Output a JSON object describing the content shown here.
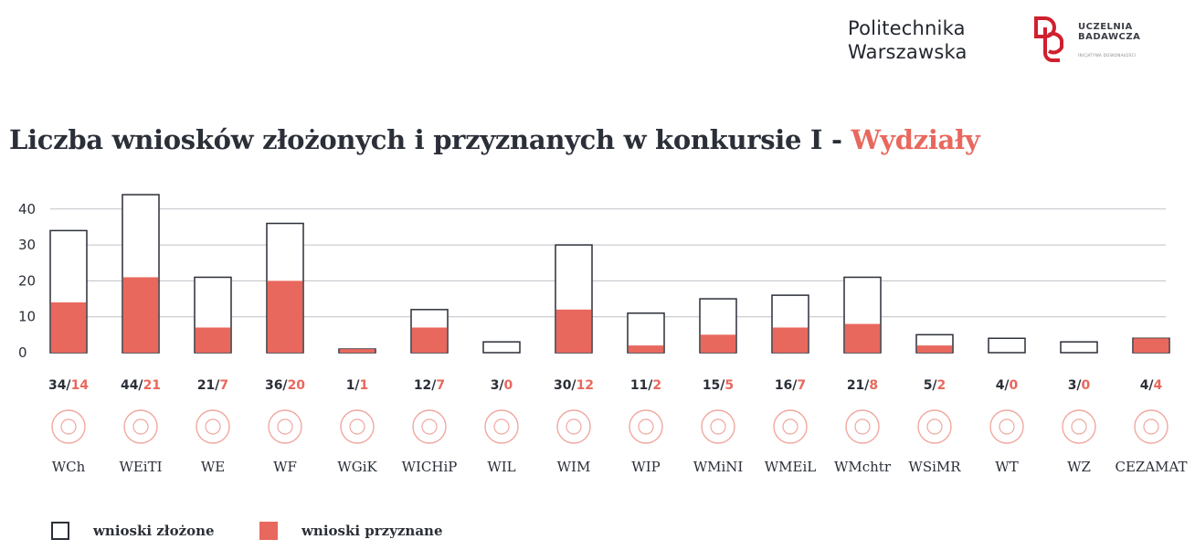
{
  "header": {
    "university_line1": "Politechnika",
    "university_line2": "Warszawska",
    "badge_line1": "UCZELNIA",
    "badge_line2": "BADAWCZA",
    "badge_sub": "INICJATYWA DOSKONAŁOŚCI"
  },
  "title": {
    "main": "Liczba wniosków złożonych i przyznanych w konkursie I - ",
    "accent": "Wydziały"
  },
  "colors": {
    "accent": "#e8685d",
    "outline": "#2b2f38",
    "grid": "#bfc1c6",
    "icon": "#f0a8a0"
  },
  "chart_data": {
    "type": "bar",
    "categories": [
      "WCh",
      "WEiTI",
      "WE",
      "WF",
      "WGiK",
      "WICHiP",
      "WIL",
      "WIM",
      "WIP",
      "WMiNI",
      "WMEiL",
      "WMchtr",
      "WSiMR",
      "WT",
      "WZ",
      "CEZAMAT"
    ],
    "series": [
      {
        "name": "wnioski złożone",
        "values": [
          34,
          44,
          21,
          36,
          1,
          12,
          3,
          30,
          11,
          15,
          16,
          21,
          5,
          4,
          3,
          4
        ]
      },
      {
        "name": "wnioski przyznane",
        "values": [
          14,
          21,
          7,
          20,
          1,
          7,
          0,
          12,
          2,
          5,
          7,
          8,
          2,
          0,
          0,
          4
        ]
      }
    ],
    "yticks": [
      0,
      10,
      20,
      30,
      40
    ],
    "ylim": [
      0,
      45
    ],
    "grid": true,
    "xlabel": "",
    "ylabel": ""
  },
  "legend": {
    "submitted": "wnioski złożone",
    "granted": "wnioski przyznane"
  }
}
